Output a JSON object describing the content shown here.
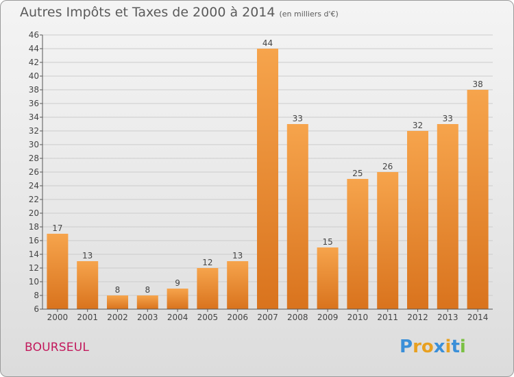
{
  "title": "Autres Impôts et Taxes de 2000 à 2014",
  "subtitle": "(en milliers d'€)",
  "commune": "BOURSEUL",
  "logo": {
    "text": "Proxiti",
    "colors": [
      "#3a8fd8",
      "#e8a020",
      "#e8a020",
      "#3a8fd8",
      "#e8a020",
      "#3a8fd8",
      "#7ac043"
    ]
  },
  "colors": {
    "bar_top": "#f6a44c",
    "bar_bottom": "#d9731d",
    "grid": "#cccccc",
    "axis": "#555555",
    "text": "#444444"
  },
  "chart_data": {
    "type": "bar",
    "categories": [
      "2000",
      "2001",
      "2002",
      "2003",
      "2004",
      "2005",
      "2006",
      "2007",
      "2008",
      "2009",
      "2010",
      "2011",
      "2012",
      "2013",
      "2014"
    ],
    "values": [
      17,
      13,
      8,
      8,
      9,
      12,
      13,
      44,
      33,
      15,
      25,
      26,
      32,
      33,
      38
    ],
    "ylim": [
      6,
      46
    ],
    "yticks": [
      6,
      8,
      10,
      12,
      14,
      16,
      18,
      20,
      22,
      24,
      26,
      28,
      30,
      32,
      34,
      36,
      38,
      40,
      42,
      44,
      46
    ],
    "grid": true
  }
}
